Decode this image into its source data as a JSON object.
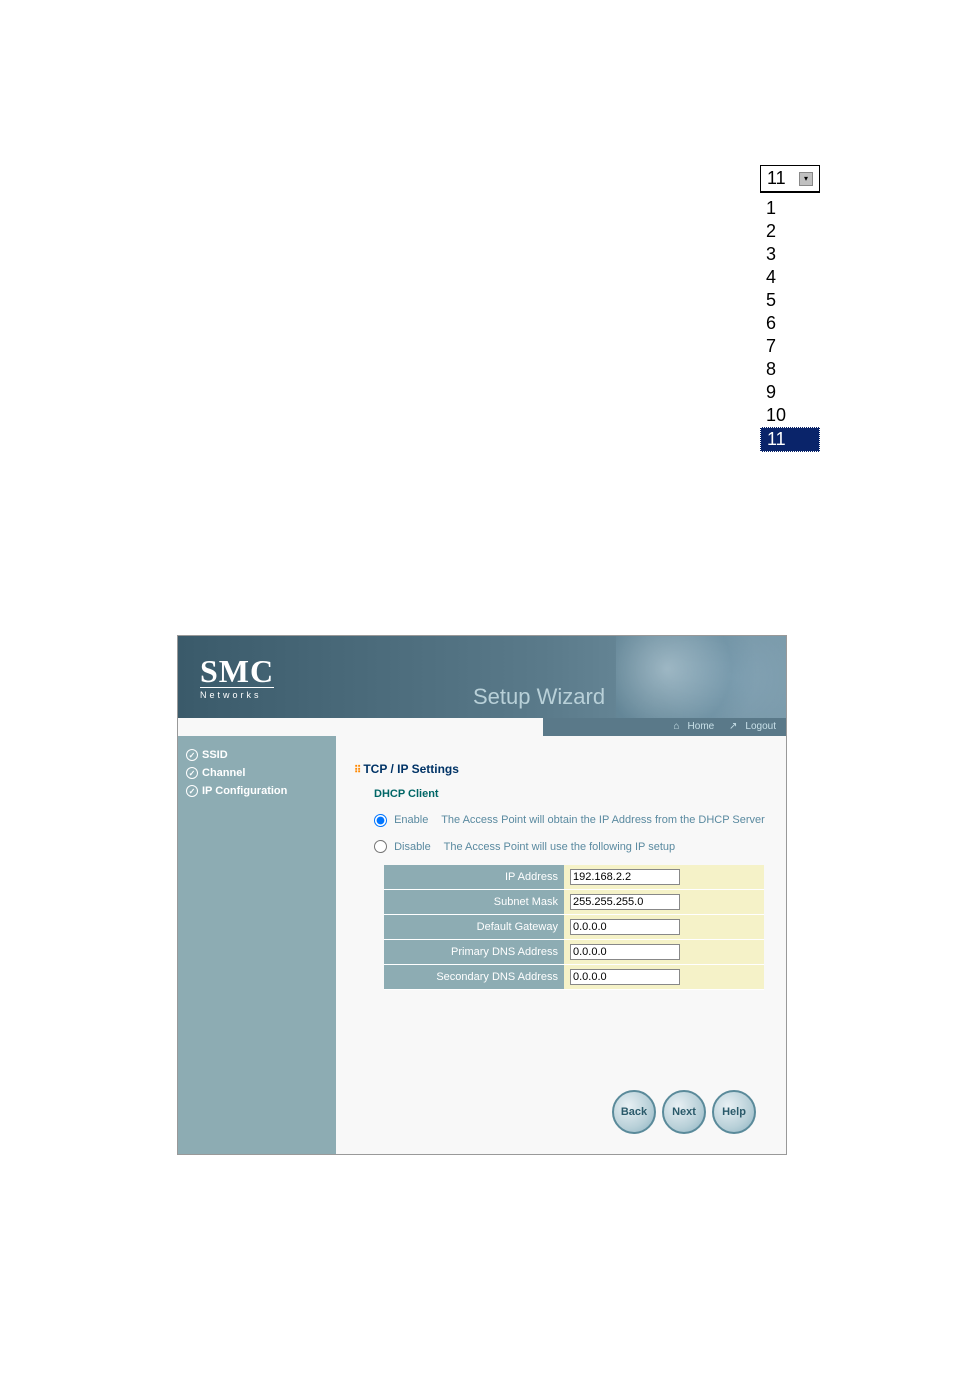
{
  "dropdown": {
    "selected": "11",
    "options": [
      "1",
      "2",
      "3",
      "4",
      "5",
      "6",
      "7",
      "8",
      "9",
      "10",
      "11"
    ],
    "highlighted_index": 10
  },
  "panel": {
    "logo_main": "SMC",
    "logo_sub": "Networks",
    "header_title": "Setup Wizard",
    "topnav": {
      "home": "Home",
      "logout": "Logout"
    },
    "sidebar": {
      "items": [
        {
          "label": "SSID"
        },
        {
          "label": "Channel"
        },
        {
          "label": "IP Configuration"
        }
      ]
    },
    "section_title": "TCP / IP Settings",
    "sub_title": "DHCP Client",
    "radios": {
      "enable": {
        "label": "Enable",
        "desc": "The Access Point  will obtain the IP Address from the DHCP Server"
      },
      "disable": {
        "label": "Disable",
        "desc": "The Access Point will use the following IP setup"
      }
    },
    "form": {
      "rows": [
        {
          "label": "IP Address",
          "value": "192.168.2.2"
        },
        {
          "label": "Subnet Mask",
          "value": "255.255.255.0"
        },
        {
          "label": "Default Gateway",
          "value": "0.0.0.0"
        },
        {
          "label": "Primary DNS Address",
          "value": "0.0.0.0"
        },
        {
          "label": "Secondary DNS Address",
          "value": "0.0.0.0"
        }
      ]
    },
    "buttons": {
      "back": "Back",
      "next": "Next",
      "help": "Help"
    }
  },
  "colors": {
    "sidebar_bg": "#8dacb3",
    "header_bg_left": "#3a5a6a",
    "header_bg_right": "#7a9aaa",
    "section_title": "#003366",
    "sub_title": "#006666",
    "radio_text": "#5a8aa0",
    "form_input_bg": "#f5f2c8",
    "highlight_bg": "#0a246a",
    "grid_icon": "#ff8800"
  }
}
